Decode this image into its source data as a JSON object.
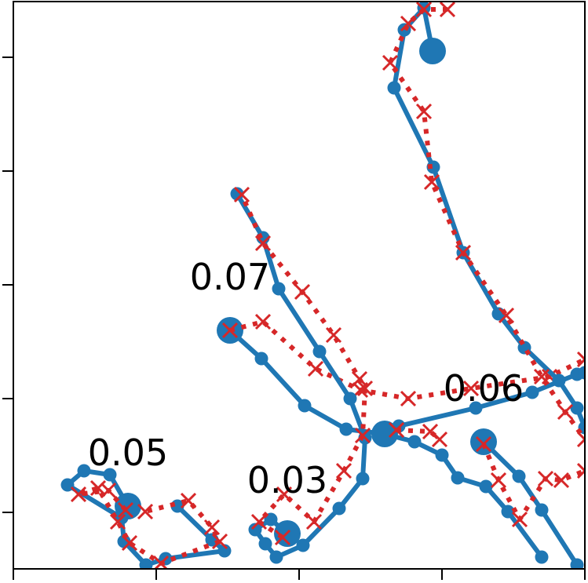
{
  "chart_data": {
    "type": "line",
    "xlim": [
      0,
      728
    ],
    "ylim": [
      0,
      723
    ],
    "xticks": [
      0,
      182,
      364,
      546,
      728
    ],
    "yticks": [
      72,
      217,
      362,
      507,
      652
    ],
    "series": [
      {
        "color": "#1f77b4",
        "linestyle": "solid",
        "marker": "o",
        "label": "0.07",
        "x": [
          276,
          316,
          371,
          424,
          473,
          511,
          546,
          566,
          602,
          630,
          673
        ],
        "values": [
          304,
          268,
          208,
          178,
          172,
          162,
          145,
          116,
          105,
          73,
          15
        ]
      },
      {
        "color": "#d62728",
        "linestyle": "dotted",
        "marker": "x",
        "x": [
          276,
          318,
          385,
          442,
          503,
          583,
          683,
          728
        ],
        "values": [
          304,
          315,
          255,
          228,
          217,
          230,
          245,
          267
        ]
      },
      {
        "color": "#1f77b4",
        "linestyle": "solid",
        "marker": "o",
        "label": "0.06",
        "x": [
          599,
          644,
          673,
          718
        ],
        "values": [
          162,
          118,
          75,
          5
        ]
      },
      {
        "color": "#d62728",
        "linestyle": "dotted",
        "marker": "x",
        "x": [
          599,
          618,
          645,
          678,
          698,
          728
        ],
        "values": [
          159,
          113,
          63,
          115,
          113,
          125
        ]
      },
      {
        "color": "#1f77b4",
        "linestyle": "solid",
        "marker": "o",
        "label": "0.03",
        "x": [
          349,
          328,
          308,
          321,
          335,
          369,
          415,
          445,
          448,
          429,
          390,
          338,
          318,
          285
        ],
        "values": [
          45,
          63,
          50,
          32,
          15,
          30,
          77,
          115,
          167,
          217,
          277,
          357,
          422,
          478
        ]
      },
      {
        "color": "#d62728",
        "linestyle": "dotted",
        "marker": "x",
        "x": [
          343,
          313,
          345,
          383,
          421,
          445,
          448,
          441,
          408,
          368,
          318,
          291
        ],
        "values": [
          40,
          60,
          95,
          60,
          125,
          170,
          230,
          242,
          298,
          353,
          415,
          477
        ]
      },
      {
        "color": "#1f77b4",
        "linestyle": "solid",
        "marker": "o",
        "label": "0.05",
        "x": [
          146,
          123,
          90,
          69,
          138,
          141,
          169,
          194,
          269,
          253,
          209
        ],
        "values": [
          80,
          120,
          125,
          107,
          65,
          35,
          5,
          13,
          23,
          37,
          80
        ]
      },
      {
        "color": "#d62728",
        "linestyle": "dotted",
        "marker": "x",
        "x": [
          143,
          121,
          83,
          108,
          133,
          148,
          188,
          263,
          253,
          223,
          168
        ],
        "values": [
          75,
          100,
          95,
          103,
          60,
          33,
          7,
          35,
          53,
          87,
          73
        ]
      },
      {
        "color": "#1f77b4",
        "linestyle": "solid",
        "marker": "o",
        "x": [
          473,
          491,
          589,
          661,
          718,
          728
        ],
        "values": [
          172,
          182,
          205,
          225,
          248,
          250
        ]
      },
      {
        "color": "#d62728",
        "linestyle": "dotted",
        "marker": "x",
        "x": [
          488,
          531,
          543
        ],
        "values": [
          177,
          175,
          165
        ]
      },
      {
        "color": "#1f77b4",
        "linestyle": "solid",
        "marker": "o",
        "x": [
          534,
          523,
          498,
          485,
          535,
          573,
          618,
          651,
          695,
          718,
          728
        ],
        "values": [
          660,
          715,
          687,
          613,
          512,
          403,
          325,
          282,
          240,
          205,
          180
        ]
      },
      {
        "color": "#d62728",
        "linestyle": "dotted",
        "marker": "x",
        "x": [
          553,
          523,
          503,
          480,
          523,
          533,
          573,
          628,
          673,
          703,
          728
        ],
        "values": [
          713,
          713,
          695,
          645,
          583,
          493,
          403,
          323,
          245,
          200,
          165
        ]
      }
    ]
  }
}
